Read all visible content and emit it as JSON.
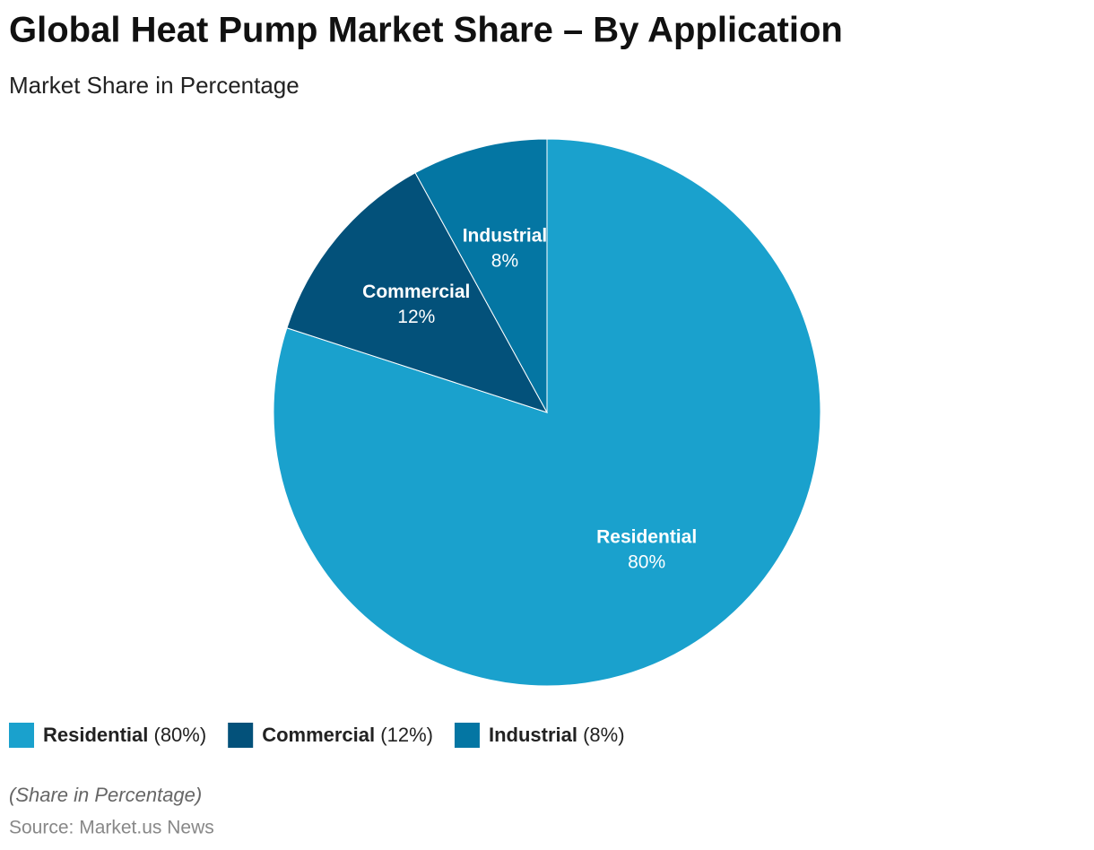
{
  "chart_data": {
    "type": "pie",
    "title": "Global Heat Pump Market Share – By Application",
    "subtitle": "Market Share in Percentage",
    "categories": [
      "Residential",
      "Commercial",
      "Industrial"
    ],
    "values": [
      80,
      12,
      8
    ],
    "value_labels": [
      "80%",
      "12%",
      "8%"
    ],
    "legend_labels": [
      "(80%)",
      "(12%)",
      "(8%)"
    ],
    "colors": [
      "#1aa1cd",
      "#03517a",
      "#0476a3"
    ],
    "note": "(Share in Percentage)",
    "source": "Source: Market.us News"
  }
}
